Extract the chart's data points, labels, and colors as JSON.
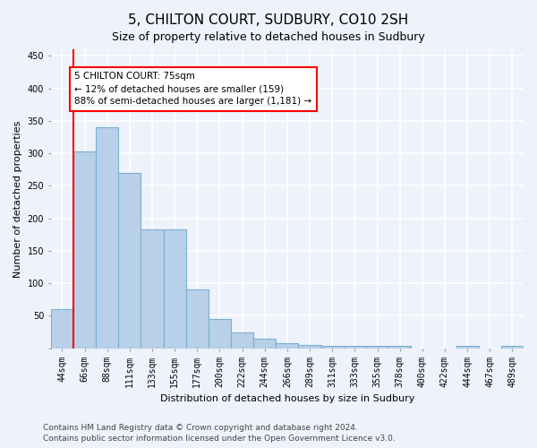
{
  "title": "5, CHILTON COURT, SUDBURY, CO10 2SH",
  "subtitle": "Size of property relative to detached houses in Sudbury",
  "xlabel": "Distribution of detached houses by size in Sudbury",
  "ylabel": "Number of detached properties",
  "categories": [
    "44sqm",
    "66sqm",
    "88sqm",
    "111sqm",
    "133sqm",
    "155sqm",
    "177sqm",
    "200sqm",
    "222sqm",
    "244sqm",
    "266sqm",
    "289sqm",
    "311sqm",
    "333sqm",
    "355sqm",
    "378sqm",
    "400sqm",
    "422sqm",
    "444sqm",
    "467sqm",
    "489sqm"
  ],
  "values": [
    60,
    303,
    340,
    270,
    183,
    183,
    90,
    45,
    24,
    15,
    8,
    5,
    4,
    4,
    4,
    4,
    0,
    0,
    4,
    0,
    4
  ],
  "bar_color": "#b8d0e8",
  "bar_edge_color": "#7aafd4",
  "red_line_color": "red",
  "annotation_text": "5 CHILTON COURT: 75sqm\n← 12% of detached houses are smaller (159)\n88% of semi-detached houses are larger (1,181) →",
  "annotation_box_color": "white",
  "annotation_box_edgecolor": "red",
  "ylim": [
    0,
    460
  ],
  "yticks": [
    0,
    50,
    100,
    150,
    200,
    250,
    300,
    350,
    400,
    450
  ],
  "footer1": "Contains HM Land Registry data © Crown copyright and database right 2024.",
  "footer2": "Contains public sector information licensed under the Open Government Licence v3.0.",
  "background_color": "#eef2fb",
  "grid_color": "white",
  "title_fontsize": 11,
  "axis_label_fontsize": 8,
  "tick_fontsize": 7,
  "annotation_fontsize": 7.5,
  "footer_fontsize": 6.5
}
